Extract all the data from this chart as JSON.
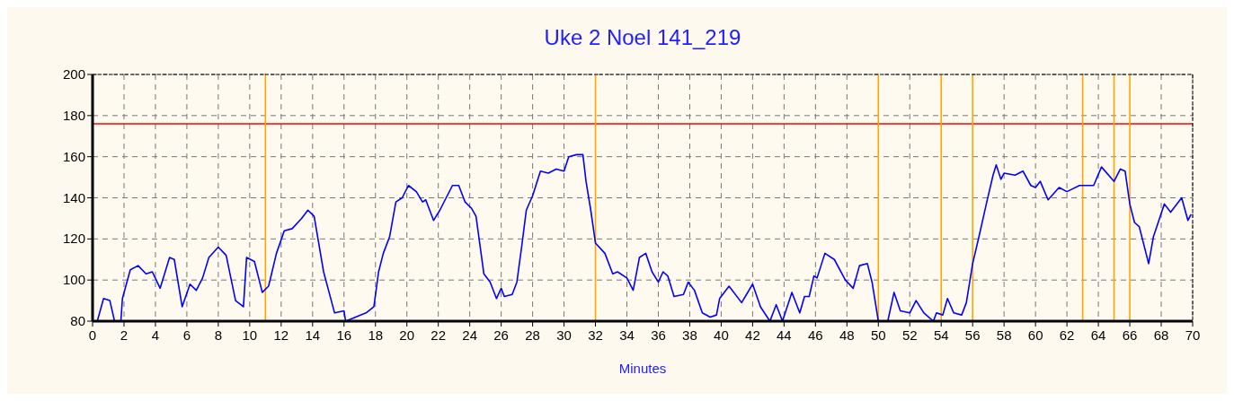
{
  "chart_data": {
    "type": "line",
    "title": "Uke 2 Noel 141_219",
    "xlabel": "Minutes",
    "x": [
      0.3,
      0.7,
      1.1,
      1.4,
      1.8,
      1.9,
      2.4,
      2.9,
      3.4,
      3.8,
      4.3,
      4.9,
      5.2,
      5.7,
      6.2,
      6.6,
      7,
      7.4,
      8,
      8.5,
      9.1,
      9.6,
      9.8,
      10.3,
      10.8,
      11.2,
      11.7,
      12.2,
      12.7,
      13.3,
      13.7,
      14.1,
      14.7,
      15.4,
      16,
      16.1,
      17.4,
      17.9,
      18.2,
      18.5,
      18.9,
      19.3,
      19.7,
      20.1,
      20.6,
      21,
      21.2,
      21.7,
      22.1,
      22.9,
      23.3,
      23.7,
      24.1,
      24.4,
      24.9,
      25.3,
      25.7,
      26,
      26.2,
      26.7,
      27,
      27.3,
      27.6,
      28,
      28.5,
      29,
      29.5,
      30,
      30.3,
      30.8,
      31.2,
      31.4,
      31.7,
      32,
      32.6,
      33.1,
      33.4,
      34,
      34.4,
      34.8,
      35.2,
      35.6,
      36,
      36.3,
      36.6,
      37,
      37.6,
      37.9,
      38.3,
      38.8,
      39.3,
      39.7,
      39.9,
      40.5,
      41.3,
      42,
      42.5,
      43.1,
      43.5,
      43.9,
      44.5,
      45,
      45.3,
      45.6,
      45.9,
      46.1,
      46.6,
      47.2,
      47.9,
      48.4,
      48.8,
      49.3,
      49.6,
      50,
      50.6,
      51,
      51.4,
      52,
      52.4,
      52.9,
      53.5,
      53.7,
      54.1,
      54.4,
      54.8,
      55.3,
      55.6,
      56,
      56.4,
      56.9,
      57.3,
      57.5,
      57.8,
      58,
      58.7,
      59.2,
      59.7,
      60,
      60.3,
      60.8,
      61.5,
      62,
      62.8,
      63.7,
      64.2,
      65,
      65.4,
      65.7,
      66,
      66.3,
      66.6,
      67.2,
      67.5,
      68.2,
      68.6,
      69.3,
      69.7,
      69.9
    ],
    "series": [
      {
        "color": "#0000ff",
        "values": [
          80,
          91,
          90,
          80,
          80,
          91,
          105,
          107,
          103,
          104,
          96,
          111,
          110,
          87,
          98,
          95,
          101,
          111,
          116,
          112,
          90,
          87,
          111,
          109,
          94,
          97,
          113,
          124,
          125,
          130,
          134,
          131,
          104,
          84,
          85,
          80,
          84,
          87,
          104,
          113,
          121,
          138,
          140,
          146,
          143,
          138,
          139,
          129,
          134,
          146,
          146,
          138,
          135,
          131,
          103,
          99,
          91,
          96,
          92,
          93,
          99,
          116,
          134,
          141,
          153,
          152,
          154,
          153,
          160,
          161,
          161,
          148,
          134,
          118,
          113,
          103,
          104,
          101,
          95,
          111,
          113,
          104,
          99,
          104,
          102,
          92,
          93,
          99,
          95,
          84,
          82,
          83,
          91,
          97,
          89,
          98,
          87,
          80,
          88,
          80,
          94,
          84,
          92,
          92,
          102,
          101,
          113,
          110,
          100,
          96,
          107,
          108,
          99,
          80,
          80,
          94,
          85,
          84,
          90,
          84,
          80,
          84,
          83,
          91,
          84,
          83,
          89,
          108,
          121,
          138,
          151,
          156,
          149,
          152,
          151,
          153,
          146,
          145,
          148,
          139,
          145,
          143,
          146,
          146,
          155,
          148,
          154,
          153,
          137,
          128,
          126,
          108,
          121,
          137,
          133,
          140,
          129,
          132
        ]
      }
    ],
    "xlim": [
      0,
      70
    ],
    "xticks": [
      0,
      2,
      4,
      6,
      8,
      10,
      12,
      14,
      16,
      18,
      20,
      22,
      24,
      26,
      28,
      30,
      32,
      34,
      36,
      38,
      40,
      42,
      44,
      46,
      48,
      50,
      52,
      54,
      56,
      58,
      60,
      62,
      64,
      66,
      68,
      70
    ],
    "ylim": [
      80,
      200
    ],
    "yticks": [
      80,
      100,
      120,
      140,
      160,
      180,
      200
    ],
    "grid": true,
    "marker": "none",
    "line_style": "solid",
    "ref_lines": [
      {
        "axis": "y",
        "value": 176,
        "color": "#ff0000"
      },
      {
        "axis": "x",
        "value": 11,
        "color": "#ffa500"
      },
      {
        "axis": "x",
        "value": 32,
        "color": "#ffa500"
      },
      {
        "axis": "x",
        "value": 50,
        "color": "#ffa500"
      },
      {
        "axis": "x",
        "value": 54,
        "color": "#ffa500"
      },
      {
        "axis": "x",
        "value": 56,
        "color": "#ffa500"
      },
      {
        "axis": "x",
        "value": 63,
        "color": "#ffa500"
      },
      {
        "axis": "x",
        "value": 65,
        "color": "#ffa500"
      },
      {
        "axis": "x",
        "value": 66,
        "color": "#ffa500"
      }
    ]
  }
}
